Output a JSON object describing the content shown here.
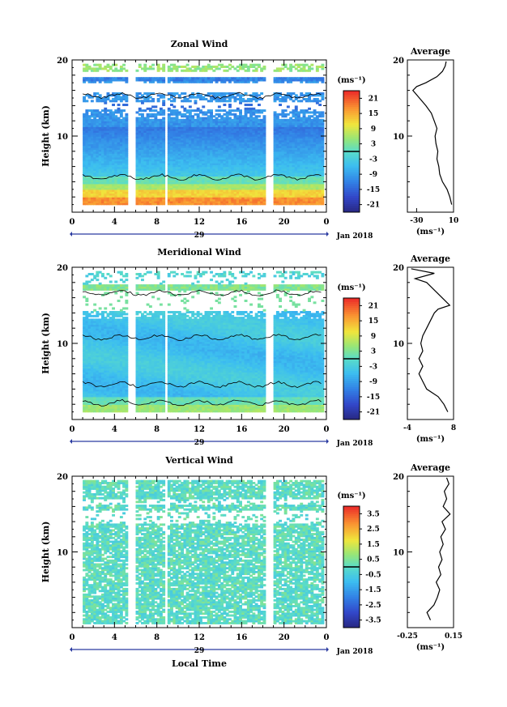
{
  "common": {
    "height_label": "Height (km)",
    "x_ticks": [
      "0",
      "4",
      "8",
      "12",
      "16",
      "20",
      "0"
    ],
    "date_tick": "29",
    "month_label": "Jan 2018",
    "bottom_label": "Local Time",
    "unit_label": "(ms⁻¹)",
    "average_title": "Average"
  },
  "chart_data": [
    {
      "id": "zonal",
      "type": "heatmap",
      "title": "Zonal Wind",
      "ylabel": "Height (km)",
      "xlabel": "Local Time",
      "xlim": [
        0,
        24
      ],
      "ylim": [
        0,
        20
      ],
      "y_ticks": [
        "20",
        "10"
      ],
      "colorbar_ticks": [
        "21",
        "15",
        "9",
        "3",
        "-3",
        "-9",
        "-15",
        "-21"
      ],
      "colorbar_range": [
        -24,
        24
      ],
      "data_gaps_hours": [
        [
          5.3,
          6
        ],
        [
          8.7,
          9.1
        ],
        [
          18.2,
          18.9
        ]
      ],
      "profile": {
        "title": "Average",
        "xlim": [
          -40,
          10
        ],
        "x_ticks": [
          "-30",
          "10"
        ],
        "x_unit": "(ms⁻¹)",
        "y_ticks": [
          "20",
          "10"
        ],
        "points": [
          [
            8,
            1
          ],
          [
            6,
            2
          ],
          [
            3,
            3
          ],
          [
            -2,
            4
          ],
          [
            -5,
            5
          ],
          [
            -6,
            6
          ],
          [
            -8,
            7
          ],
          [
            -7,
            8
          ],
          [
            -9,
            9
          ],
          [
            -10,
            10
          ],
          [
            -8,
            11
          ],
          [
            -11,
            12
          ],
          [
            -14,
            13
          ],
          [
            -20,
            14
          ],
          [
            -27,
            15
          ],
          [
            -34,
            16
          ],
          [
            -30,
            16.5
          ],
          [
            -20,
            17
          ],
          [
            -8,
            17.8
          ],
          [
            -2,
            18.5
          ],
          [
            1,
            19.2
          ],
          [
            2,
            19.8
          ]
        ]
      }
    },
    {
      "id": "meridional",
      "type": "heatmap",
      "title": "Meridional Wind",
      "ylabel": "Height (km)",
      "xlabel": "Local Time",
      "xlim": [
        0,
        24
      ],
      "ylim": [
        0,
        20
      ],
      "y_ticks": [
        "20",
        "10"
      ],
      "colorbar_ticks": [
        "21",
        "15",
        "9",
        "3",
        "-3",
        "-9",
        "-15",
        "-21"
      ],
      "colorbar_range": [
        -24,
        24
      ],
      "data_gaps_hours": [
        [
          5.3,
          6
        ],
        [
          8.7,
          9.1
        ],
        [
          18.2,
          18.9
        ]
      ],
      "profile": {
        "title": "Average",
        "xlim": [
          -4,
          8
        ],
        "x_ticks": [
          "-4",
          "8"
        ],
        "x_unit": "(ms⁻¹)",
        "y_ticks": [
          "20",
          "10"
        ],
        "points": [
          [
            6.5,
            1
          ],
          [
            5.5,
            2
          ],
          [
            4,
            3
          ],
          [
            1,
            4
          ],
          [
            0,
            5
          ],
          [
            -1,
            6
          ],
          [
            0,
            7
          ],
          [
            -1,
            8
          ],
          [
            0,
            9
          ],
          [
            -0.5,
            10
          ],
          [
            0,
            11
          ],
          [
            1,
            12
          ],
          [
            2,
            13
          ],
          [
            3,
            14
          ],
          [
            4,
            14.5
          ],
          [
            7,
            15
          ],
          [
            5,
            16
          ],
          [
            3,
            17
          ],
          [
            1,
            18
          ],
          [
            -2,
            18.5
          ],
          [
            3,
            19.2
          ],
          [
            -3,
            19.8
          ]
        ]
      }
    },
    {
      "id": "vertical",
      "type": "heatmap",
      "title": "Vertical Wind",
      "ylabel": "Height (km)",
      "xlabel": "Local Time",
      "xlim": [
        0,
        24
      ],
      "ylim": [
        0,
        20
      ],
      "y_ticks": [
        "20",
        "10"
      ],
      "colorbar_ticks": [
        "3.5",
        "2.5",
        "1.5",
        "0.5",
        "-0.5",
        "-1.5",
        "-2.5",
        "-3.5"
      ],
      "colorbar_range": [
        -4,
        4
      ],
      "data_gaps_hours": [
        [
          5.3,
          6
        ],
        [
          8.7,
          9.1
        ],
        [
          18.2,
          18.9
        ]
      ],
      "profile": {
        "title": "Average",
        "xlim": [
          -0.25,
          0.15
        ],
        "x_ticks": [
          "-0.25",
          "0.15"
        ],
        "x_unit": "(ms⁻¹)",
        "y_ticks": [
          "20",
          "10"
        ],
        "points": [
          [
            -0.05,
            1
          ],
          [
            -0.08,
            2
          ],
          [
            -0.02,
            3
          ],
          [
            0.01,
            4
          ],
          [
            0.03,
            5
          ],
          [
            0.0,
            6
          ],
          [
            0.04,
            7
          ],
          [
            0.02,
            8
          ],
          [
            0.05,
            9
          ],
          [
            0.03,
            10
          ],
          [
            0.06,
            11
          ],
          [
            0.04,
            12
          ],
          [
            0.08,
            13
          ],
          [
            0.05,
            14
          ],
          [
            0.12,
            15
          ],
          [
            0.06,
            16
          ],
          [
            0.09,
            17
          ],
          [
            0.07,
            18
          ],
          [
            0.11,
            19
          ],
          [
            0.09,
            19.8
          ]
        ]
      }
    }
  ]
}
